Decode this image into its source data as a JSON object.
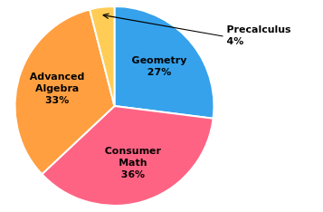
{
  "chart_data": {
    "type": "pie",
    "categories": [
      "Geometry",
      "Consumer\nMath",
      "Advanced\nAlgebra",
      "Precalculus"
    ],
    "values": [
      27,
      36,
      33,
      4
    ],
    "value_labels": [
      "27%",
      "36%",
      "33%",
      "4%"
    ],
    "data_labels": true
  }
}
